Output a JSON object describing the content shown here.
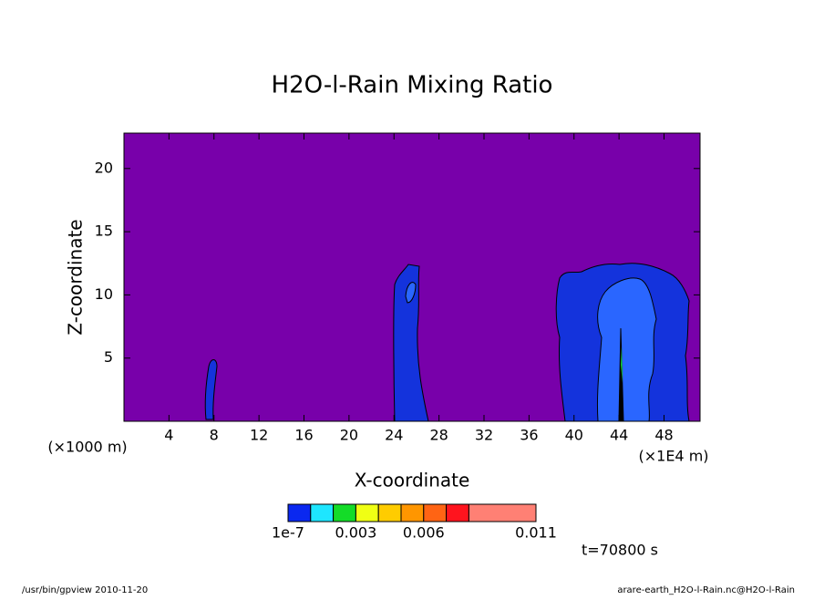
{
  "chart_data": {
    "type": "contour",
    "title": "H2O-l-Rain Mixing Ratio",
    "x_label": "X-coordinate",
    "y_label": "Z-coordinate",
    "x_unit_left": "(×1000 m)",
    "x_unit_right": "(×1E4 m)",
    "xlim": [
      0,
      51.2
    ],
    "ylim": [
      0,
      22.8
    ],
    "xticks": [
      4,
      8,
      12,
      16,
      20,
      24,
      28,
      32,
      36,
      40,
      44,
      48
    ],
    "yticks": [
      5,
      10,
      15,
      20
    ],
    "background_color": "#7800aa",
    "colorbar": {
      "colors": [
        "#0a28f0",
        "#1ee6ff",
        "#14dc28",
        "#f0ff14",
        "#ffcc00",
        "#ff9600",
        "#ff6414",
        "#ff141e",
        "#ff8074"
      ],
      "ticks": [
        {
          "value": 1e-07,
          "label": "1e-7"
        },
        0.003,
        0.006,
        0.011
      ]
    },
    "time_label": "t=70800 s",
    "footer_left": "/usr/bin/gpview  2010-11-20",
    "footer_right": "arare-earth_H2O-l-Rain.nc@H2O-l-Rain"
  }
}
